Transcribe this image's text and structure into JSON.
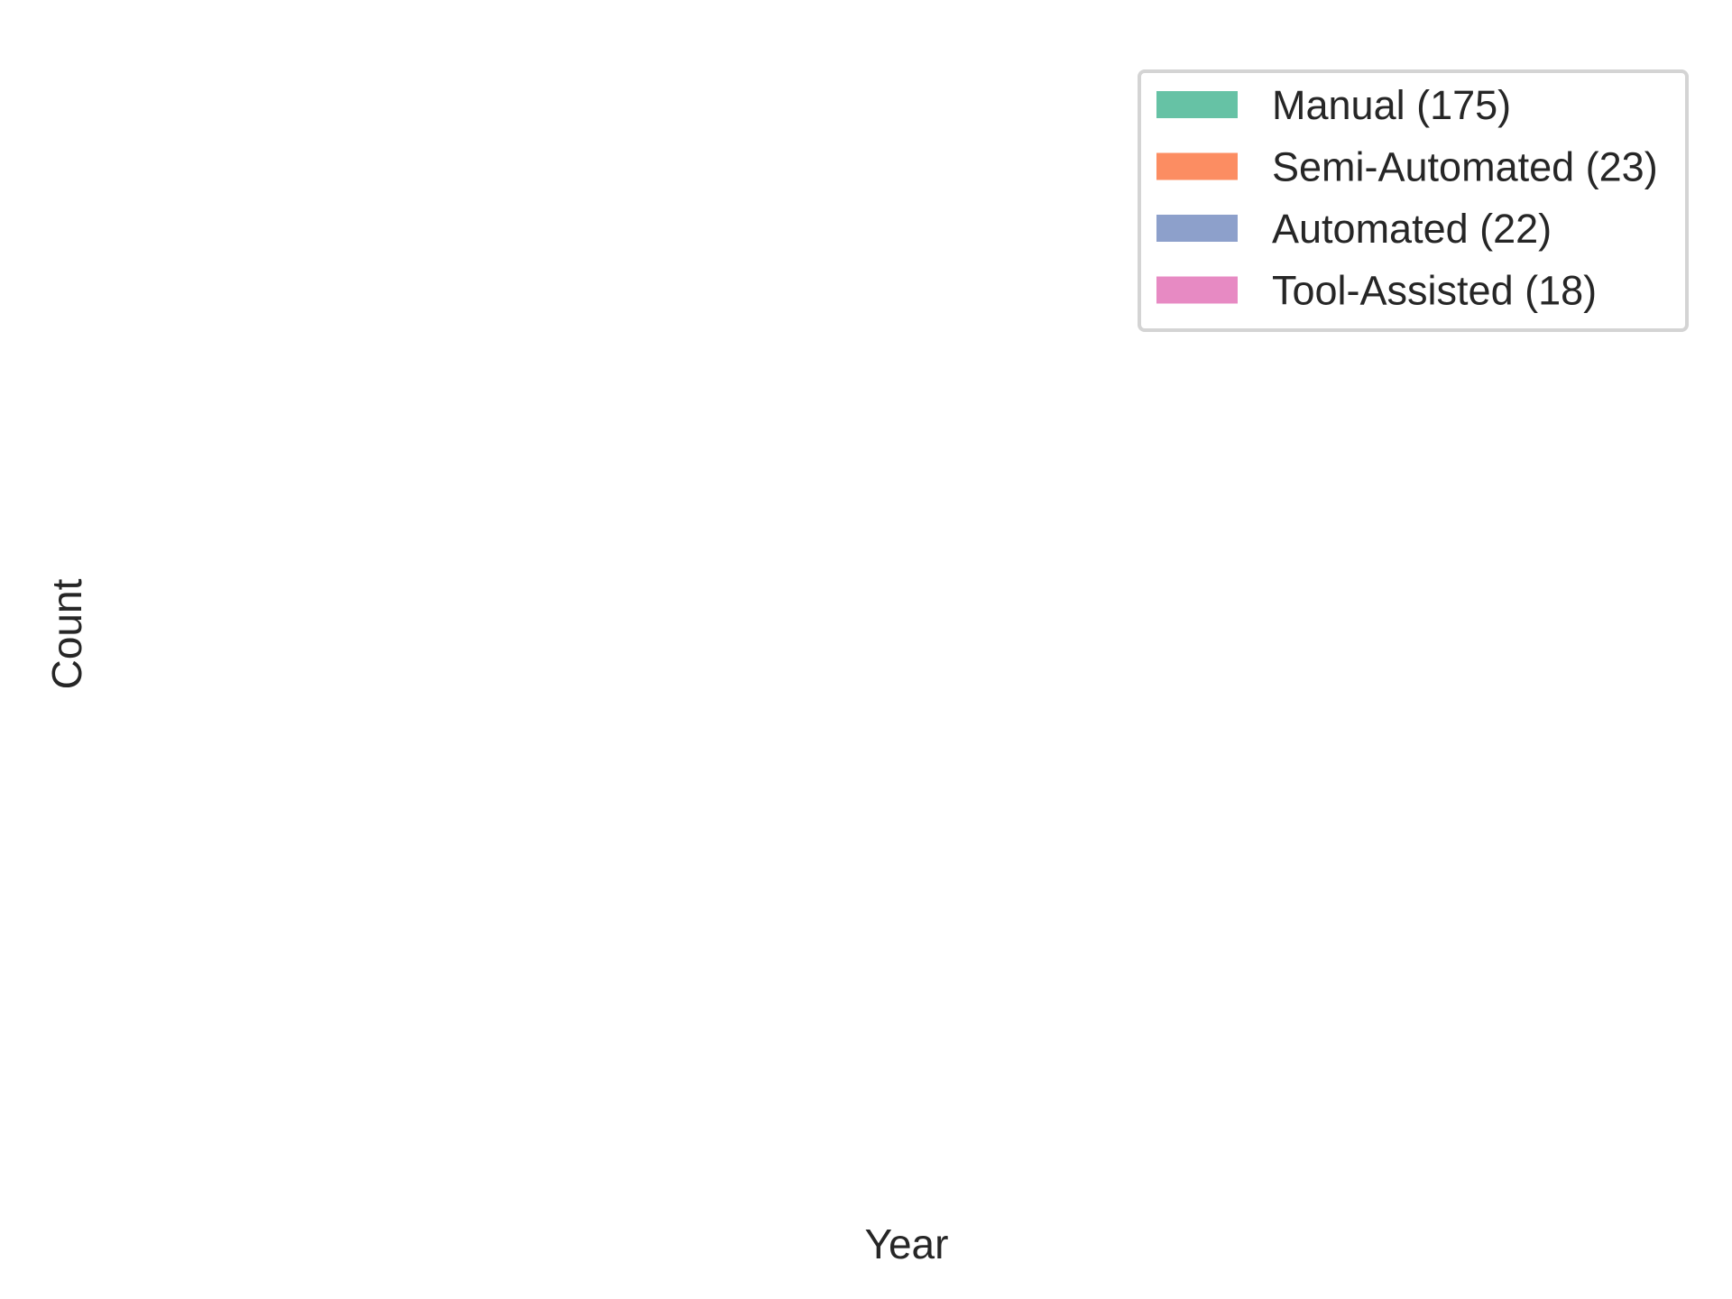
{
  "chart_data": {
    "type": "bar",
    "stacked": true,
    "title": "",
    "xlabel": "Year",
    "ylabel": "Count",
    "categories": [],
    "series": [
      {
        "name": "Manual (175)",
        "color": "#66c2a5",
        "values": []
      },
      {
        "name": "Semi-Automated (23)",
        "color": "#fc8d62",
        "values": []
      },
      {
        "name": "Automated (22)",
        "color": "#8da0cb",
        "values": []
      },
      {
        "name": "Tool-Assisted (18)",
        "color": "#e78ac3",
        "values": []
      }
    ],
    "grid": false,
    "legend_position": "top-right"
  }
}
